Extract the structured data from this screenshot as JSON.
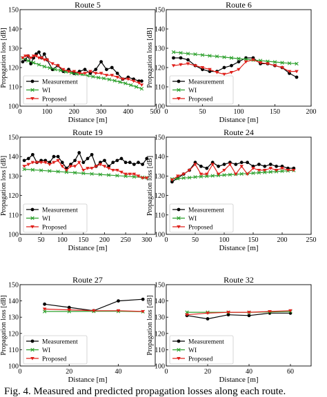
{
  "caption": "Fig. 4.  Measured and predicted propagation losses along each route.",
  "colors": {
    "measurement": "#000000",
    "wi": "#2ca02c",
    "proposed": "#e0201b",
    "axis": "#000000"
  },
  "chart_data": [
    {
      "type": "line",
      "title": "Route 5",
      "xlabel": "Distance [m]",
      "ylabel": "Propagation loss [dB]",
      "xlim": [
        0,
        500
      ],
      "ylim": [
        100,
        150
      ],
      "xticks": [
        "0",
        "100",
        "200",
        "300",
        "400",
        "500"
      ],
      "yticks": [
        "100",
        "110",
        "120",
        "130",
        "140",
        "150"
      ],
      "legend_position": "lower-left",
      "series": [
        {
          "name": "Measurement",
          "marker": "dot",
          "x": [
            10,
            20,
            30,
            40,
            50,
            60,
            70,
            80,
            90,
            100,
            120,
            140,
            160,
            180,
            200,
            220,
            240,
            260,
            280,
            300,
            320,
            340,
            360,
            380,
            400,
            420,
            440,
            450
          ],
          "y": [
            123,
            124,
            126,
            122,
            125,
            127,
            128,
            125,
            127,
            124,
            119,
            121,
            118,
            119,
            117,
            118,
            119,
            117,
            119,
            123,
            119,
            120,
            117,
            114,
            115,
            114,
            113,
            113
          ]
        },
        {
          "name": "WI",
          "marker": "x",
          "x": [
            10,
            30,
            50,
            70,
            90,
            110,
            130,
            150,
            170,
            190,
            210,
            230,
            250,
            270,
            290,
            310,
            330,
            350,
            370,
            390,
            410,
            430,
            450
          ],
          "y": [
            125,
            123.5,
            122.5,
            121.5,
            120.5,
            119.8,
            119,
            118.5,
            117.8,
            117.2,
            116.7,
            116.3,
            115.8,
            115.3,
            114.8,
            114.4,
            113.8,
            113.2,
            112.5,
            111.8,
            110.9,
            110,
            109
          ]
        },
        {
          "name": "Proposed",
          "marker": "triangle-down",
          "x": [
            10,
            20,
            30,
            40,
            50,
            60,
            70,
            80,
            90,
            100,
            120,
            140,
            160,
            180,
            200,
            220,
            240,
            260,
            280,
            300,
            320,
            340,
            360,
            380,
            400,
            420,
            440,
            450
          ],
          "y": [
            125,
            126,
            126,
            125,
            126,
            126,
            125,
            125,
            124,
            124,
            122,
            121,
            119,
            118,
            118,
            117,
            117,
            118,
            117,
            117,
            116,
            116,
            115,
            114,
            114,
            113,
            112,
            111
          ]
        }
      ]
    },
    {
      "type": "line",
      "title": "Route 6",
      "xlabel": "Distance [m]",
      "ylabel": "Propagation loss [dB]",
      "xlim": [
        0,
        200
      ],
      "ylim": [
        100,
        150
      ],
      "xticks": [
        "0",
        "50",
        "100",
        "150",
        "200"
      ],
      "yticks": [
        "100",
        "110",
        "120",
        "130",
        "140",
        "150"
      ],
      "legend_position": "lower-left",
      "series": [
        {
          "name": "Measurement",
          "marker": "dot",
          "x": [
            10,
            20,
            30,
            40,
            50,
            60,
            70,
            80,
            90,
            100,
            110,
            120,
            130,
            140,
            150,
            160,
            170,
            180
          ],
          "y": [
            125,
            125,
            124,
            121,
            119,
            118,
            118,
            120,
            121,
            123,
            125,
            125,
            122,
            122,
            121,
            120,
            117,
            115
          ]
        },
        {
          "name": "WI",
          "marker": "x",
          "x": [
            10,
            20,
            30,
            40,
            50,
            60,
            70,
            80,
            90,
            100,
            110,
            120,
            130,
            140,
            150,
            160,
            170,
            180
          ],
          "y": [
            128,
            127.6,
            127.2,
            126.9,
            126.5,
            126.1,
            125.8,
            125.4,
            125,
            124.6,
            124.3,
            123.9,
            123.6,
            123.2,
            122.9,
            122.5,
            122.2,
            122
          ]
        },
        {
          "name": "Proposed",
          "marker": "triangle-down",
          "x": [
            10,
            20,
            30,
            40,
            50,
            60,
            70,
            80,
            90,
            100,
            110,
            120,
            130,
            140,
            150,
            160,
            170,
            180
          ],
          "y": [
            121,
            121.5,
            122,
            121,
            120,
            119,
            117.5,
            116.5,
            117.5,
            119,
            123,
            124,
            122.5,
            122,
            121,
            120,
            118,
            118
          ]
        }
      ]
    },
    {
      "type": "line",
      "title": "Route 19",
      "xlabel": "Distance [m]",
      "ylabel": "Propagation loss [dB]",
      "xlim": [
        0,
        320
      ],
      "ylim": [
        100,
        150
      ],
      "xticks": [
        "0",
        "50",
        "100",
        "150",
        "200",
        "250",
        "300"
      ],
      "yticks": [
        "100",
        "110",
        "120",
        "130",
        "140",
        "150"
      ],
      "legend_position": "lower-left",
      "series": [
        {
          "name": "Measurement",
          "marker": "dot",
          "x": [
            10,
            20,
            30,
            40,
            50,
            60,
            70,
            80,
            90,
            100,
            110,
            120,
            130,
            140,
            150,
            160,
            170,
            180,
            190,
            200,
            210,
            220,
            230,
            240,
            250,
            260,
            270,
            280,
            290,
            300
          ],
          "y": [
            138,
            139,
            141,
            137,
            138,
            138,
            137,
            140,
            140,
            137,
            134,
            136,
            138,
            142,
            137,
            139,
            141,
            135,
            137,
            138,
            135,
            137,
            138,
            139,
            137,
            137,
            136,
            137,
            136,
            139
          ]
        },
        {
          "name": "WI",
          "marker": "x",
          "x": [
            10,
            30,
            50,
            70,
            90,
            110,
            130,
            150,
            170,
            190,
            210,
            230,
            250,
            270,
            290,
            300
          ],
          "y": [
            133.5,
            133.2,
            132.9,
            132.6,
            132.3,
            132,
            131.7,
            131.4,
            131.1,
            130.8,
            130.5,
            130.2,
            129.9,
            129.6,
            129.3,
            129.2
          ]
        },
        {
          "name": "Proposed",
          "marker": "triangle-down",
          "x": [
            10,
            20,
            30,
            40,
            50,
            60,
            70,
            80,
            90,
            100,
            110,
            120,
            130,
            140,
            150,
            160,
            170,
            180,
            190,
            200,
            210,
            220,
            230,
            240,
            250,
            260,
            270,
            280,
            290,
            300
          ],
          "y": [
            135,
            136,
            137,
            137,
            137,
            137,
            136,
            137,
            138,
            135,
            133,
            135,
            135,
            137,
            133,
            134,
            134,
            135,
            136,
            135,
            134,
            133,
            133,
            132,
            131,
            131,
            131,
            130,
            129,
            129
          ]
        }
      ]
    },
    {
      "type": "line",
      "title": "Route 24",
      "xlabel": "Distance [m]",
      "ylabel": "Propagation loss [dB]",
      "xlim": [
        0,
        250
      ],
      "ylim": [
        100,
        150
      ],
      "xticks": [
        "0",
        "50",
        "100",
        "150",
        "200",
        "250"
      ],
      "yticks": [
        "100",
        "110",
        "120",
        "130",
        "140",
        "150"
      ],
      "legend_position": "lower-left",
      "series": [
        {
          "name": "Measurement",
          "marker": "dot",
          "x": [
            10,
            20,
            30,
            40,
            50,
            60,
            70,
            80,
            90,
            100,
            110,
            120,
            130,
            140,
            150,
            160,
            170,
            180,
            190,
            200,
            210,
            220
          ],
          "y": [
            127,
            129,
            131,
            133,
            137,
            135,
            134,
            137,
            135,
            136,
            137,
            136,
            137,
            137,
            135,
            136,
            135,
            136,
            135,
            135,
            134,
            134
          ]
        },
        {
          "name": "WI",
          "marker": "x",
          "x": [
            10,
            20,
            30,
            40,
            50,
            60,
            70,
            80,
            90,
            100,
            110,
            120,
            130,
            140,
            150,
            160,
            170,
            180,
            190,
            200,
            210,
            220
          ],
          "y": [
            128.5,
            128.7,
            129,
            129.2,
            129.5,
            129.7,
            129.9,
            130.1,
            130.3,
            130.5,
            130.7,
            130.9,
            131.1,
            131.3,
            131.5,
            131.7,
            131.9,
            132.1,
            132.3,
            132.5,
            132.7,
            132.9
          ]
        },
        {
          "name": "Proposed",
          "marker": "triangle-down",
          "x": [
            10,
            20,
            30,
            40,
            50,
            60,
            70,
            80,
            90,
            100,
            110,
            120,
            130,
            140,
            150,
            160,
            170,
            180,
            190,
            200,
            210,
            220
          ],
          "y": [
            128,
            130,
            131,
            133,
            136,
            131,
            131,
            136,
            131,
            133,
            136,
            131,
            135,
            131,
            134,
            133,
            133,
            134,
            133,
            134,
            133,
            133
          ]
        }
      ]
    },
    {
      "type": "line",
      "title": "Route 27",
      "xlabel": "Distance [m]",
      "ylabel": "Propagation loss [dB]",
      "xlim": [
        0,
        55
      ],
      "ylim": [
        100,
        150
      ],
      "xticks": [
        "0",
        "20",
        "40"
      ],
      "yticks": [
        "100",
        "110",
        "120",
        "130",
        "140",
        "150"
      ],
      "legend_position": "lower-left",
      "series": [
        {
          "name": "Measurement",
          "marker": "dot",
          "x": [
            10,
            20,
            30,
            40,
            50
          ],
          "y": [
            138,
            136,
            134,
            140,
            141
          ]
        },
        {
          "name": "WI",
          "marker": "x",
          "x": [
            10,
            20,
            30,
            40,
            50
          ],
          "y": [
            133.5,
            133.5,
            133.6,
            133.6,
            133.4
          ]
        },
        {
          "name": "Proposed",
          "marker": "triangle-down",
          "x": [
            10,
            20,
            30,
            40,
            50
          ],
          "y": [
            135,
            134.5,
            134,
            134,
            133.5
          ]
        }
      ]
    },
    {
      "type": "line",
      "title": "Route 32",
      "xlabel": "Distance [m]",
      "ylabel": "Propagation loss [dB]",
      "xlim": [
        0,
        70
      ],
      "ylim": [
        100,
        150
      ],
      "xticks": [
        "0",
        "20",
        "40",
        "60"
      ],
      "yticks": [
        "100",
        "110",
        "120",
        "130",
        "140",
        "150"
      ],
      "legend_position": "lower-left",
      "series": [
        {
          "name": "Measurement",
          "marker": "dot",
          "x": [
            10,
            20,
            30,
            40,
            50,
            60
          ],
          "y": [
            131,
            129,
            131.5,
            131,
            132.5,
            132.5
          ]
        },
        {
          "name": "WI",
          "marker": "x",
          "x": [
            10,
            20,
            30,
            40,
            50,
            60
          ],
          "y": [
            133,
            133,
            133,
            133,
            133.2,
            133.5
          ]
        },
        {
          "name": "Proposed",
          "marker": "triangle-down",
          "x": [
            10,
            20,
            30,
            40,
            50,
            60
          ],
          "y": [
            131.5,
            132.5,
            133,
            133,
            133.5,
            134
          ]
        }
      ]
    }
  ]
}
